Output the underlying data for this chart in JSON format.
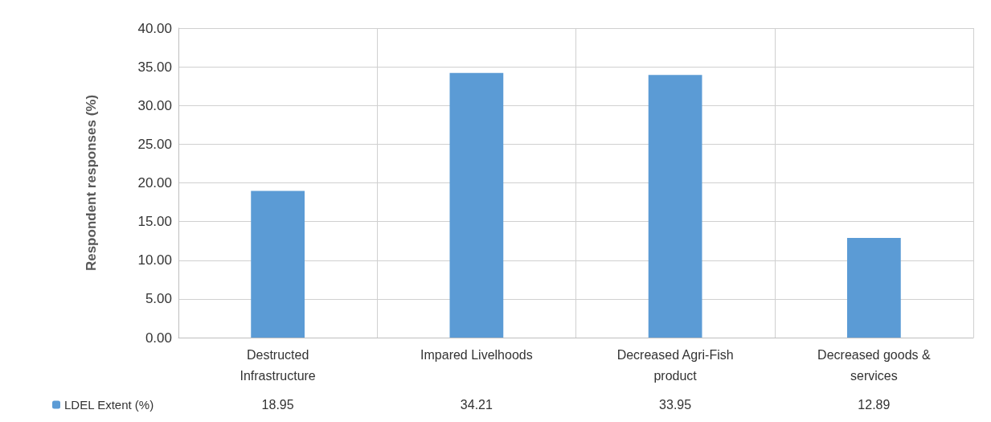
{
  "chart_data": {
    "type": "bar",
    "ylabel": "Respondent responses (%)",
    "categories": [
      "Destructed\nInfrastructure",
      "Impared Livelhoods",
      "Decreased Agri-Fish\nproduct",
      "Decreased goods &\nservices"
    ],
    "series": [
      {
        "name": "LDEL Extent (%)",
        "color": "#5b9bd5",
        "values": [
          18.95,
          34.21,
          33.95,
          12.89
        ]
      }
    ],
    "ylim": [
      0,
      40
    ],
    "yticks": [
      {
        "value": 0,
        "label": "0.00"
      },
      {
        "value": 5,
        "label": "5.00"
      },
      {
        "value": 10,
        "label": "10.00"
      },
      {
        "value": 15,
        "label": "15.00"
      },
      {
        "value": 20,
        "label": "20.00"
      },
      {
        "value": 25,
        "label": "25.00"
      },
      {
        "value": 30,
        "label": "30.00"
      },
      {
        "value": 35,
        "label": "35.00"
      },
      {
        "value": 40,
        "label": "40.00"
      }
    ],
    "grid": true,
    "legend": "bottom left",
    "data_labels": true
  }
}
